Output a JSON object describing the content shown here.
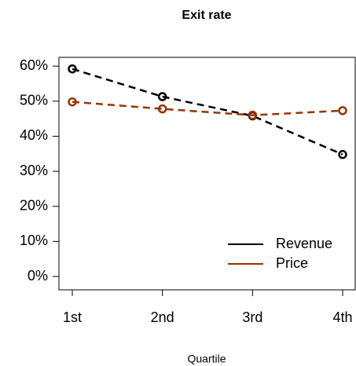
{
  "chart_data": {
    "type": "line",
    "title": "Exit rate",
    "x_label": "Quartile",
    "categories": [
      "1st",
      "2nd",
      "3rd",
      "4th"
    ],
    "series": [
      {
        "name": "Revenue",
        "color": "#000000",
        "values": [
          59.2,
          51.3,
          45.8,
          34.8
        ]
      },
      {
        "name": "Price",
        "color": "#993300",
        "values": [
          49.8,
          47.8,
          46.0,
          47.3
        ]
      }
    ],
    "ylim": [
      -3.8,
      62.5
    ],
    "yticks": [
      {
        "value": 0,
        "label": "0%"
      },
      {
        "value": 10,
        "label": "10%"
      },
      {
        "value": 20,
        "label": "20%"
      },
      {
        "value": 30,
        "label": "30%"
      },
      {
        "value": 40,
        "label": "40%"
      },
      {
        "value": 50,
        "label": "50%"
      },
      {
        "value": 60,
        "label": "60%"
      }
    ],
    "legend": "bottom-right"
  }
}
